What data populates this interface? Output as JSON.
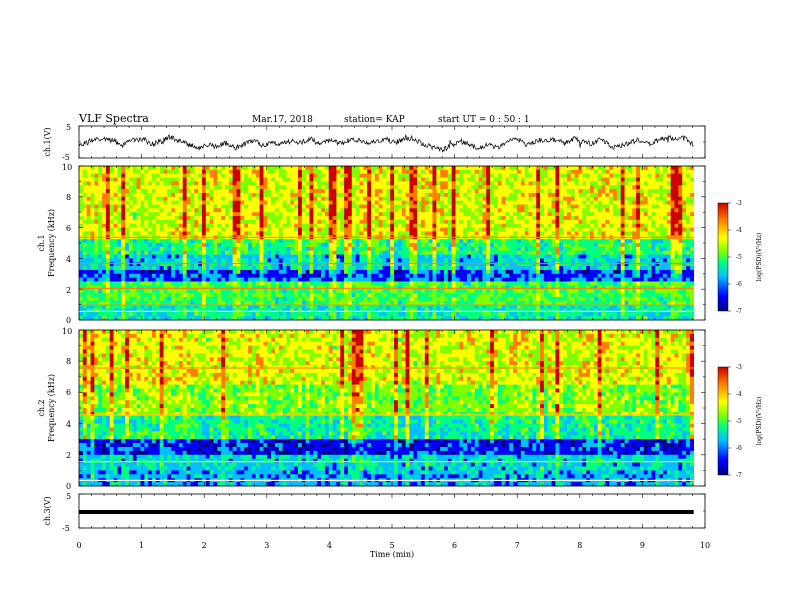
{
  "chart_data": [
    {
      "type": "line",
      "panel": "ch1-waveform",
      "ylabel": "ch.1(V)",
      "ylim": [
        -5,
        5
      ],
      "yticks": [
        "5",
        "-5"
      ],
      "xlim": [
        0,
        10
      ],
      "series": [
        {
          "x": [
            0,
            0.1,
            0.25,
            0.4,
            0.55,
            0.7,
            0.85,
            1.0,
            1.15,
            1.3,
            1.45,
            1.6,
            1.75,
            1.9,
            2.05,
            2.2,
            2.35,
            2.5,
            2.65,
            2.8,
            2.95,
            3.1,
            3.25,
            3.4,
            3.55,
            3.7,
            3.85,
            4.0,
            4.15,
            4.3,
            4.45,
            4.6,
            4.75,
            4.9,
            5.05,
            5.2,
            5.35,
            5.5,
            5.65,
            5.8,
            5.95,
            6.1,
            6.25,
            6.4,
            6.55,
            6.7,
            6.85,
            7.0,
            7.15,
            7.3,
            7.45,
            7.6,
            7.75,
            7.9,
            8.05,
            8.2,
            8.35,
            8.5,
            8.65,
            8.8,
            8.95,
            9.1,
            9.25,
            9.4,
            9.55,
            9.7,
            9.82
          ],
          "y": [
            -1.5,
            -0.4,
            0.8,
            1.2,
            0.3,
            -1.0,
            0.5,
            1.0,
            -0.8,
            0.2,
            1.5,
            0.4,
            -0.6,
            -2.2,
            -0.9,
            -1.4,
            -0.2,
            -1.8,
            -0.7,
            0.6,
            -1.2,
            -0.3,
            -0.5,
            0.2,
            -0.1,
            0.9,
            -0.6,
            0.4,
            -0.2,
            0.3,
            0.7,
            -0.4,
            0.1,
            1.0,
            -0.3,
            0.8,
            1.2,
            -0.9,
            -1.6,
            -2.5,
            -1.0,
            0.2,
            -0.8,
            -2.2,
            -0.5,
            -2.0,
            0.4,
            1.0,
            -0.9,
            0.3,
            0.8,
            0.6,
            -0.4,
            1.1,
            0.2,
            -0.5,
            1.0,
            -1.6,
            -1.2,
            -0.2,
            0.6,
            -0.7,
            0.4,
            1.6,
            0.9,
            1.3,
            -1.1
          ]
        }
      ]
    },
    {
      "type": "heatmap",
      "panel": "ch1-spectrogram",
      "ylabel_channel": "ch.1",
      "ylabel": "Frequency (kHz)",
      "ylim": [
        0,
        10
      ],
      "yticks": [
        "0",
        "2",
        "4",
        "6",
        "8",
        "10"
      ],
      "xlim": [
        0,
        10
      ],
      "colorbar": {
        "label": "log(PSD)(V²/Hz)",
        "range": [
          -7,
          -3
        ],
        "ticks": [
          "-3",
          "-4",
          "-5",
          "-6",
          "-7"
        ]
      }
    },
    {
      "type": "heatmap",
      "panel": "ch2-spectrogram",
      "ylabel_channel": "ch.2",
      "ylabel": "Frequency (kHz)",
      "ylim": [
        0,
        10
      ],
      "yticks": [
        "0",
        "2",
        "4",
        "6",
        "8",
        "10"
      ],
      "xlim": [
        0,
        10
      ],
      "colorbar": {
        "label": "log(PSD)(V²/Hz)",
        "range": [
          -7,
          -3
        ],
        "ticks": [
          "-3",
          "-4",
          "-5",
          "-6",
          "-7"
        ]
      }
    },
    {
      "type": "line",
      "panel": "ch3-waveform",
      "ylabel": "ch.3(V)",
      "ylim": [
        -5,
        5
      ],
      "yticks": [
        "5",
        "-5"
      ],
      "xlim": [
        0,
        10
      ],
      "series": [
        {
          "x": [
            0,
            9.82
          ],
          "y": [
            0,
            0
          ]
        }
      ]
    }
  ],
  "header": {
    "title": "VLF Spectra",
    "date": "Mar.17, 2018",
    "station": "station= KAP",
    "start": "start  UT =   0 : 50 : 1"
  },
  "xaxis": {
    "label": "Time (min)",
    "ticks": [
      "0",
      "1",
      "2",
      "3",
      "4",
      "5",
      "6",
      "7",
      "8",
      "9",
      "10"
    ]
  },
  "colors": {
    "scale": [
      "#00007f",
      "#0000ff",
      "#00bfff",
      "#00ff7f",
      "#7fff00",
      "#ffff00",
      "#ff7f00",
      "#cc0000"
    ]
  }
}
